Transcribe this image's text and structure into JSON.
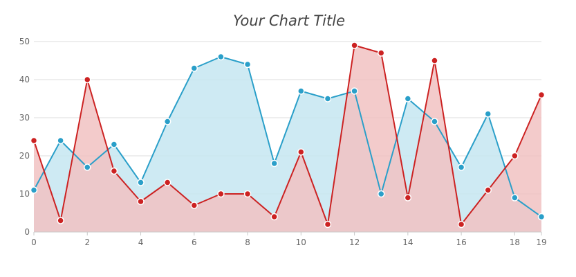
{
  "chart_data": {
    "type": "area",
    "title": "Your Chart Title",
    "xlabel": "",
    "ylabel": "",
    "x": [
      0,
      1,
      2,
      3,
      4,
      5,
      6,
      7,
      8,
      9,
      10,
      11,
      12,
      13,
      14,
      15,
      16,
      17,
      18,
      19
    ],
    "xlim": [
      0,
      19
    ],
    "ylim": [
      0,
      50
    ],
    "x_ticks": [
      0,
      2,
      4,
      6,
      8,
      10,
      12,
      14,
      16,
      18,
      19
    ],
    "y_ticks": [
      0,
      10,
      20,
      30,
      40,
      50
    ],
    "grid": true,
    "legend": "none",
    "series": [
      {
        "color": "#2a9fc9",
        "fill": "#c6e6f1",
        "values": [
          11,
          24,
          17,
          23,
          13,
          29,
          43,
          46,
          44,
          18,
          37,
          35,
          37,
          10,
          35,
          29,
          17,
          31,
          9,
          4
        ]
      },
      {
        "color": "#cc2222",
        "fill": "#f1c2c2",
        "values": [
          24,
          3,
          40,
          16,
          8,
          13,
          7,
          10,
          10,
          4,
          21,
          2,
          49,
          47,
          9,
          45,
          2,
          11,
          20,
          36
        ]
      }
    ]
  }
}
